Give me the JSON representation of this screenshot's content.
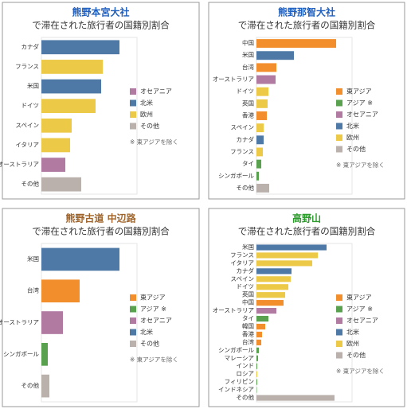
{
  "chart_data": [
    {
      "type": "bar",
      "orientation": "horizontal",
      "title": "熊野本宮大社",
      "subtitle": "で滞在された旅行者の国籍別割合",
      "title_color": "#1f5fbf",
      "note": "※ 東アジアを除く",
      "xlim": [
        0,
        120
      ],
      "categories": [
        "カナダ",
        "フランス",
        "米国",
        "ドイツ",
        "スペイン",
        "イタリア",
        "オーストラリア",
        "その他"
      ],
      "series": [
        {
          "name": "オセアニア",
          "color": "#b07aa1",
          "values": [
            null,
            null,
            null,
            null,
            null,
            null,
            30,
            null
          ]
        },
        {
          "name": "北米",
          "color": "#4e79a7",
          "values": [
            98,
            null,
            75,
            null,
            null,
            null,
            null,
            null
          ]
        },
        {
          "name": "欧州",
          "color": "#edc948",
          "values": [
            null,
            77,
            null,
            68,
            38,
            36,
            null,
            null
          ]
        },
        {
          "name": "その他",
          "color": "#bab0ac",
          "values": [
            null,
            null,
            null,
            null,
            null,
            null,
            null,
            50
          ]
        }
      ]
    },
    {
      "type": "bar",
      "orientation": "horizontal",
      "title": "熊野那智大社",
      "subtitle": "で滞在された旅行者の国籍別割合",
      "title_color": "#1f5fbf",
      "note": "※ 東アジアを除く",
      "xlim": [
        0,
        120
      ],
      "categories": [
        "中国",
        "米国",
        "台湾",
        "オーストラリア",
        "ドイツ",
        "英国",
        "香港",
        "スペイン",
        "カナダ",
        "フランス",
        "タイ",
        "シンガポール",
        "その他"
      ],
      "series": [
        {
          "name": "東アジア",
          "color": "#f28e2b",
          "values": [
            100,
            null,
            25,
            null,
            null,
            null,
            13,
            null,
            null,
            null,
            null,
            null,
            null
          ]
        },
        {
          "name": "アジア ※",
          "color": "#59a14f",
          "values": [
            null,
            null,
            null,
            null,
            null,
            null,
            null,
            null,
            null,
            null,
            6,
            3,
            null
          ]
        },
        {
          "name": "オセアニア",
          "color": "#b07aa1",
          "values": [
            null,
            null,
            null,
            24,
            null,
            null,
            null,
            null,
            null,
            null,
            null,
            null,
            null
          ]
        },
        {
          "name": "北米",
          "color": "#4e79a7",
          "values": [
            null,
            47,
            null,
            null,
            null,
            null,
            null,
            null,
            9,
            null,
            null,
            null,
            null
          ]
        },
        {
          "name": "欧州",
          "color": "#edc948",
          "values": [
            null,
            null,
            null,
            null,
            15,
            14,
            null,
            9,
            null,
            8,
            null,
            null,
            null
          ]
        },
        {
          "name": "その他",
          "color": "#bab0ac",
          "values": [
            null,
            null,
            null,
            null,
            null,
            null,
            null,
            null,
            null,
            null,
            null,
            null,
            16
          ]
        }
      ]
    },
    {
      "type": "bar",
      "orientation": "horizontal",
      "title": "熊野古道 中辺路",
      "subtitle": "で滞在された旅行者の国籍別割合",
      "title_color": "#a0642a",
      "note": "※ 東アジアを除く",
      "xlim": [
        0,
        120
      ],
      "categories": [
        "米国",
        "台湾",
        "オーストラリア",
        "シンガポール",
        "その他"
      ],
      "series": [
        {
          "name": "東アジア",
          "color": "#f28e2b",
          "values": [
            null,
            48,
            null,
            null,
            null
          ]
        },
        {
          "name": "アジア ※",
          "color": "#59a14f",
          "values": [
            null,
            null,
            null,
            8,
            null
          ]
        },
        {
          "name": "オセアニア",
          "color": "#b07aa1",
          "values": [
            null,
            null,
            27,
            null,
            null
          ]
        },
        {
          "name": "北米",
          "color": "#4e79a7",
          "values": [
            98,
            null,
            null,
            null,
            null
          ]
        },
        {
          "name": "その他",
          "color": "#bab0ac",
          "values": [
            null,
            null,
            null,
            null,
            10
          ]
        }
      ]
    },
    {
      "type": "bar",
      "orientation": "horizontal",
      "title": "高野山",
      "subtitle": "で滞在された旅行者の国籍別割合",
      "title_color": "#2e9a2e",
      "note": "※ 東アジアを除く",
      "xlim": [
        0,
        120
      ],
      "categories": [
        "米国",
        "フランス",
        "イタリア",
        "カナダ",
        "スペイン",
        "ドイツ",
        "英国",
        "中国",
        "オーストラリア",
        "タイ",
        "韓国",
        "香港",
        "台湾",
        "シンガポール",
        "マレーシア",
        "インド",
        "ロシア",
        "フィリピン",
        "インドネシア",
        "その他"
      ],
      "series": [
        {
          "name": "東アジア",
          "color": "#f28e2b",
          "values": [
            null,
            null,
            null,
            null,
            null,
            null,
            null,
            34,
            null,
            null,
            11,
            7,
            6,
            null,
            null,
            null,
            null,
            null,
            null,
            null
          ]
        },
        {
          "name": "アジア ※",
          "color": "#59a14f",
          "values": [
            null,
            null,
            null,
            null,
            null,
            null,
            null,
            null,
            null,
            15,
            null,
            null,
            null,
            3,
            2,
            1,
            null,
            1,
            0.5,
            null
          ]
        },
        {
          "name": "オセアニア",
          "color": "#b07aa1",
          "values": [
            null,
            null,
            null,
            null,
            null,
            null,
            null,
            null,
            25,
            null,
            null,
            null,
            null,
            null,
            null,
            null,
            null,
            null,
            null,
            null
          ]
        },
        {
          "name": "北米",
          "color": "#4e79a7",
          "values": [
            88,
            null,
            null,
            44,
            null,
            null,
            null,
            null,
            null,
            null,
            null,
            null,
            null,
            null,
            null,
            null,
            null,
            null,
            null,
            null
          ]
        },
        {
          "name": "欧州",
          "color": "#edc948",
          "values": [
            null,
            77,
            70,
            null,
            43,
            40,
            36,
            null,
            null,
            null,
            null,
            null,
            null,
            null,
            null,
            null,
            1,
            null,
            null,
            null
          ]
        },
        {
          "name": "その他",
          "color": "#bab0ac",
          "values": [
            null,
            null,
            null,
            null,
            null,
            null,
            null,
            null,
            null,
            null,
            null,
            null,
            null,
            null,
            null,
            null,
            null,
            null,
            null,
            98
          ]
        }
      ]
    }
  ]
}
